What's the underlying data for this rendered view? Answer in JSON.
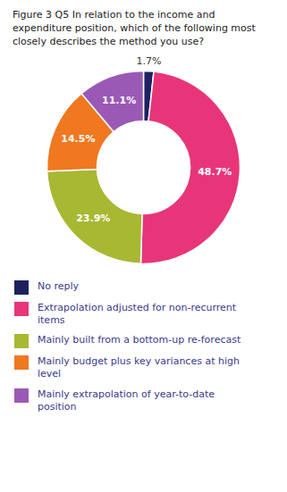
{
  "chart_data": {
    "type": "pie",
    "title": "Figure 3 Q5 In relation to the income and expenditure position, which of the following most closely describes the method you use?",
    "categories": [
      "No reply",
      "Extrapolation adjusted for non-recurrent\nitems",
      "Mainly built from a bottom-up re-forecast",
      "Mainly budget plus key variances at high\nlevel",
      "Mainly extrapolation of year-to-date\nposition"
    ],
    "values": [
      1.7,
      48.7,
      23.9,
      14.5,
      11.1
    ],
    "value_labels": [
      "1.7%",
      "48.7%",
      "23.9%",
      "14.5%",
      "11.1%"
    ],
    "colors": [
      "#1e2160",
      "#e8357a",
      "#a8b832",
      "#f07820",
      "#9b59b6"
    ],
    "data_labels": true,
    "legend": "bottom"
  }
}
